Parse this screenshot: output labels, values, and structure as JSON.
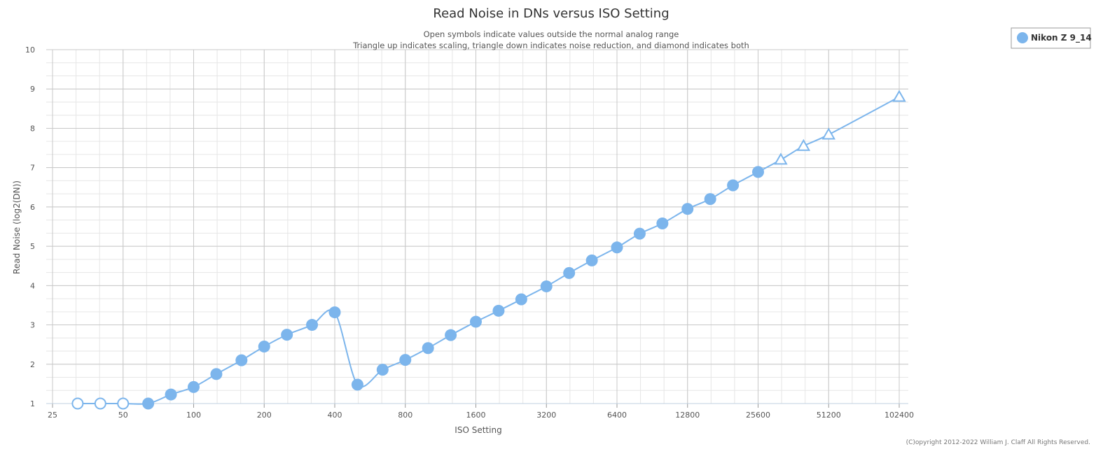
{
  "chart_data": {
    "type": "line",
    "title": "Read Noise in DNs versus ISO Setting",
    "subtitle_lines": [
      "Open symbols indicate values outside the normal analog range",
      "Triangle up indicates scaling, triangle down indicates noise reduction, and diamond indicates both"
    ],
    "xlabel": "ISO Setting",
    "ylabel": "Read Noise (log2(DN))",
    "x_scale": "log2",
    "x_ticks": [
      25,
      50,
      100,
      200,
      400,
      800,
      1600,
      3200,
      6400,
      12800,
      25600,
      51200,
      102400
    ],
    "xlim": [
      25,
      102400
    ],
    "ylim": [
      1,
      10
    ],
    "y_ticks": [
      1,
      2,
      3,
      4,
      5,
      6,
      7,
      8,
      9,
      10
    ],
    "grid": true,
    "legend_position": "top-right",
    "copyright": "(C)opyright 2012-2022 William J. Claff All Rights Reserved.",
    "colors": {
      "series": "#7cb5ec",
      "grid_major": "#c8c8c8",
      "grid_minor": "#e6e6e6"
    },
    "series": [
      {
        "name": "Nikon Z 9_14",
        "points": [
          {
            "iso": 32,
            "value": 1.0,
            "marker": "open-circle"
          },
          {
            "iso": 40,
            "value": 1.0,
            "marker": "open-circle"
          },
          {
            "iso": 50,
            "value": 1.0,
            "marker": "open-circle"
          },
          {
            "iso": 64,
            "value": 1.0,
            "marker": "circle"
          },
          {
            "iso": 80,
            "value": 1.23,
            "marker": "circle"
          },
          {
            "iso": 100,
            "value": 1.42,
            "marker": "circle"
          },
          {
            "iso": 125,
            "value": 1.75,
            "marker": "circle"
          },
          {
            "iso": 160,
            "value": 2.1,
            "marker": "circle"
          },
          {
            "iso": 200,
            "value": 2.45,
            "marker": "circle"
          },
          {
            "iso": 250,
            "value": 2.75,
            "marker": "circle"
          },
          {
            "iso": 320,
            "value": 3.0,
            "marker": "circle"
          },
          {
            "iso": 400,
            "value": 3.32,
            "marker": "circle"
          },
          {
            "iso": 500,
            "value": 1.48,
            "marker": "circle"
          },
          {
            "iso": 640,
            "value": 1.86,
            "marker": "circle"
          },
          {
            "iso": 800,
            "value": 2.11,
            "marker": "circle"
          },
          {
            "iso": 1000,
            "value": 2.41,
            "marker": "circle"
          },
          {
            "iso": 1250,
            "value": 2.74,
            "marker": "circle"
          },
          {
            "iso": 1600,
            "value": 3.08,
            "marker": "circle"
          },
          {
            "iso": 2000,
            "value": 3.36,
            "marker": "circle"
          },
          {
            "iso": 2500,
            "value": 3.65,
            "marker": "circle"
          },
          {
            "iso": 3200,
            "value": 3.98,
            "marker": "circle"
          },
          {
            "iso": 4000,
            "value": 4.32,
            "marker": "circle"
          },
          {
            "iso": 5000,
            "value": 4.64,
            "marker": "circle"
          },
          {
            "iso": 6400,
            "value": 4.97,
            "marker": "circle"
          },
          {
            "iso": 8000,
            "value": 5.32,
            "marker": "circle"
          },
          {
            "iso": 10000,
            "value": 5.58,
            "marker": "circle"
          },
          {
            "iso": 12800,
            "value": 5.95,
            "marker": "circle"
          },
          {
            "iso": 16000,
            "value": 6.2,
            "marker": "circle"
          },
          {
            "iso": 20000,
            "value": 6.55,
            "marker": "circle"
          },
          {
            "iso": 25600,
            "value": 6.89,
            "marker": "circle"
          },
          {
            "iso": 32000,
            "value": 7.2,
            "marker": "open-triangle-up"
          },
          {
            "iso": 40000,
            "value": 7.55,
            "marker": "open-triangle-up"
          },
          {
            "iso": 51200,
            "value": 7.84,
            "marker": "open-triangle-up"
          },
          {
            "iso": 102400,
            "value": 8.8,
            "marker": "open-triangle-up"
          }
        ]
      }
    ]
  }
}
